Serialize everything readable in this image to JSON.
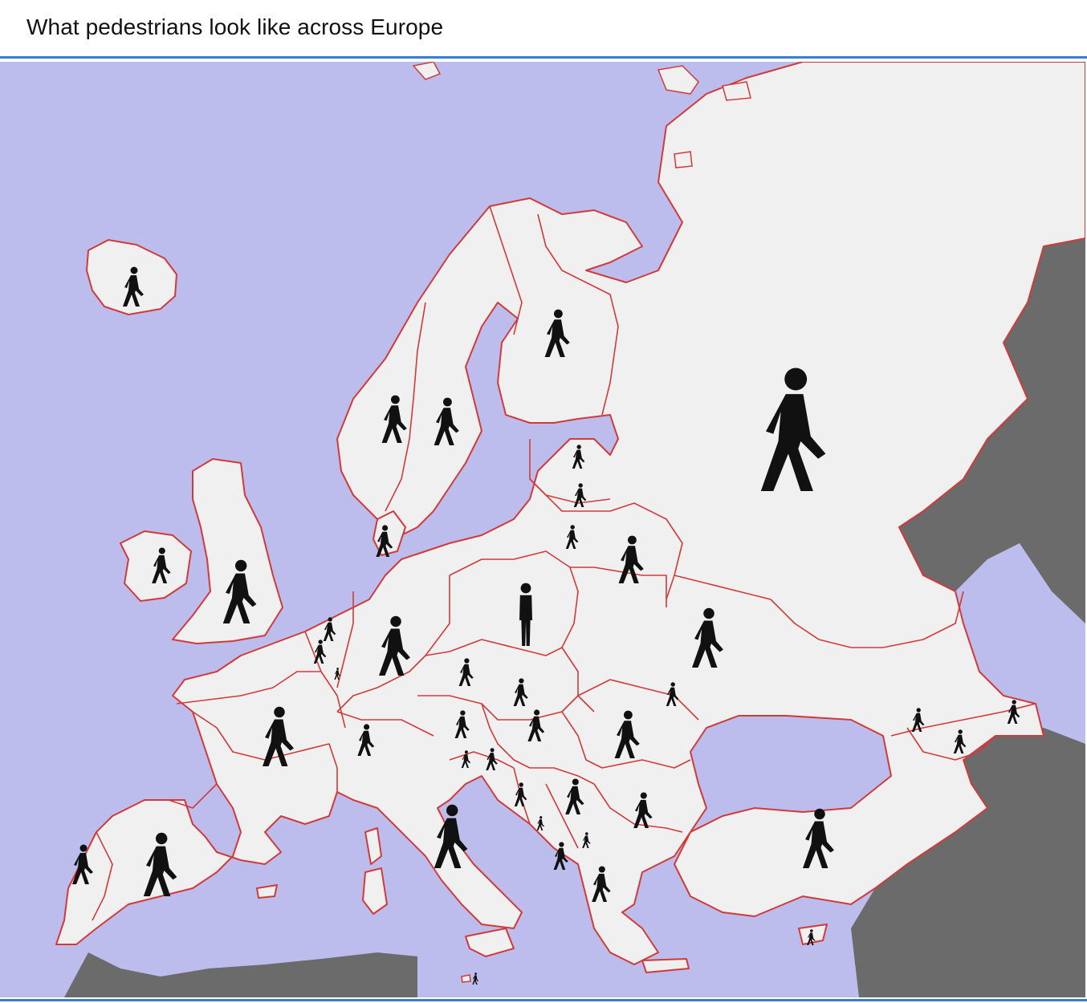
{
  "header": {
    "title": "What pedestrians look like across Europe"
  },
  "colors": {
    "sea": "#bcbdec",
    "land": "#f0f0f0",
    "border": "#d23a3a",
    "outside_land": "#6b6b6b",
    "figure": "#111111",
    "accent_rule": "#3a7bd5"
  },
  "icons": [
    "pedestrian-icon",
    "standing-person-icon",
    "sign-rectangle-icon"
  ]
}
